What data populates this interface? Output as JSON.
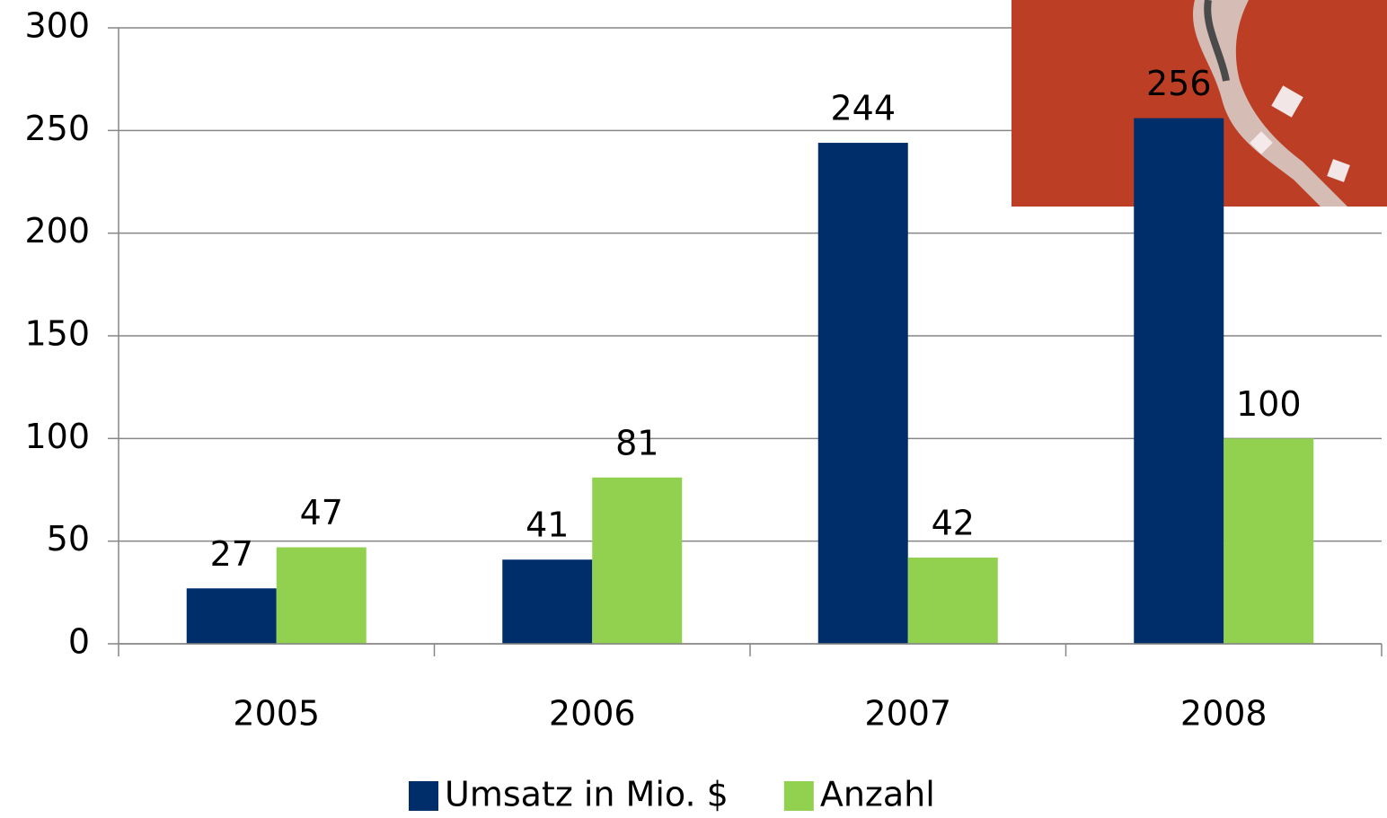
{
  "chart_data": {
    "type": "bar",
    "categories": [
      "2005",
      "2006",
      "2007",
      "2008"
    ],
    "series": [
      {
        "name": "Umsatz in Mio. $",
        "color": "#002e6b",
        "values": [
          27,
          41,
          244,
          256
        ]
      },
      {
        "name": "Anzahl",
        "color": "#92d050",
        "values": [
          47,
          81,
          42,
          100
        ]
      }
    ],
    "ylim": [
      0,
      300
    ],
    "yticks": [
      0,
      50,
      100,
      150,
      200,
      250,
      300
    ],
    "grid": true,
    "legend": "bottom"
  }
}
